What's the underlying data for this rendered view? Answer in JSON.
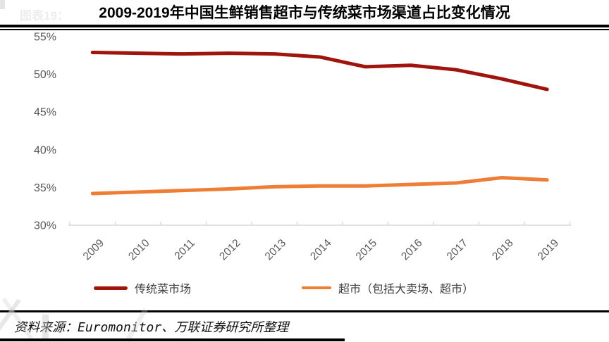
{
  "figure_label": "图表19：",
  "title": "2009-2019年中国生鲜销售超市与传统菜市场渠道占比变化情况",
  "source": "资料来源：Euromonitor、万联证券研究所整理",
  "colors": {
    "traditional": "#a0140e",
    "supermarket": "#ee7d35",
    "axis": "#d9d9d9",
    "tick_label": "#595959"
  },
  "chart_data": {
    "type": "line",
    "title": "2009-2019年中国生鲜销售超市与传统菜市场渠道占比变化情况",
    "categories": [
      "2009",
      "2010",
      "2011",
      "2012",
      "2013",
      "2014",
      "2015",
      "2016",
      "2017",
      "2018",
      "2019"
    ],
    "series": [
      {
        "name": "传统菜市场",
        "color": "#a0140e",
        "values": [
          52.9,
          52.8,
          52.7,
          52.8,
          52.7,
          52.3,
          51.0,
          51.2,
          50.6,
          49.4,
          48.0
        ]
      },
      {
        "name": "超市（包括大卖场、超市）",
        "color": "#ee7d35",
        "values": [
          34.2,
          34.4,
          34.6,
          34.8,
          35.1,
          35.2,
          35.2,
          35.4,
          35.6,
          36.3,
          36.0
        ]
      }
    ],
    "xlabel": "",
    "ylabel": "",
    "ylim": [
      30,
      55
    ],
    "yticks": [
      30,
      35,
      40,
      45,
      50,
      55
    ],
    "ytick_format": "{v}%",
    "grid": false,
    "legend_position": "bottom"
  }
}
